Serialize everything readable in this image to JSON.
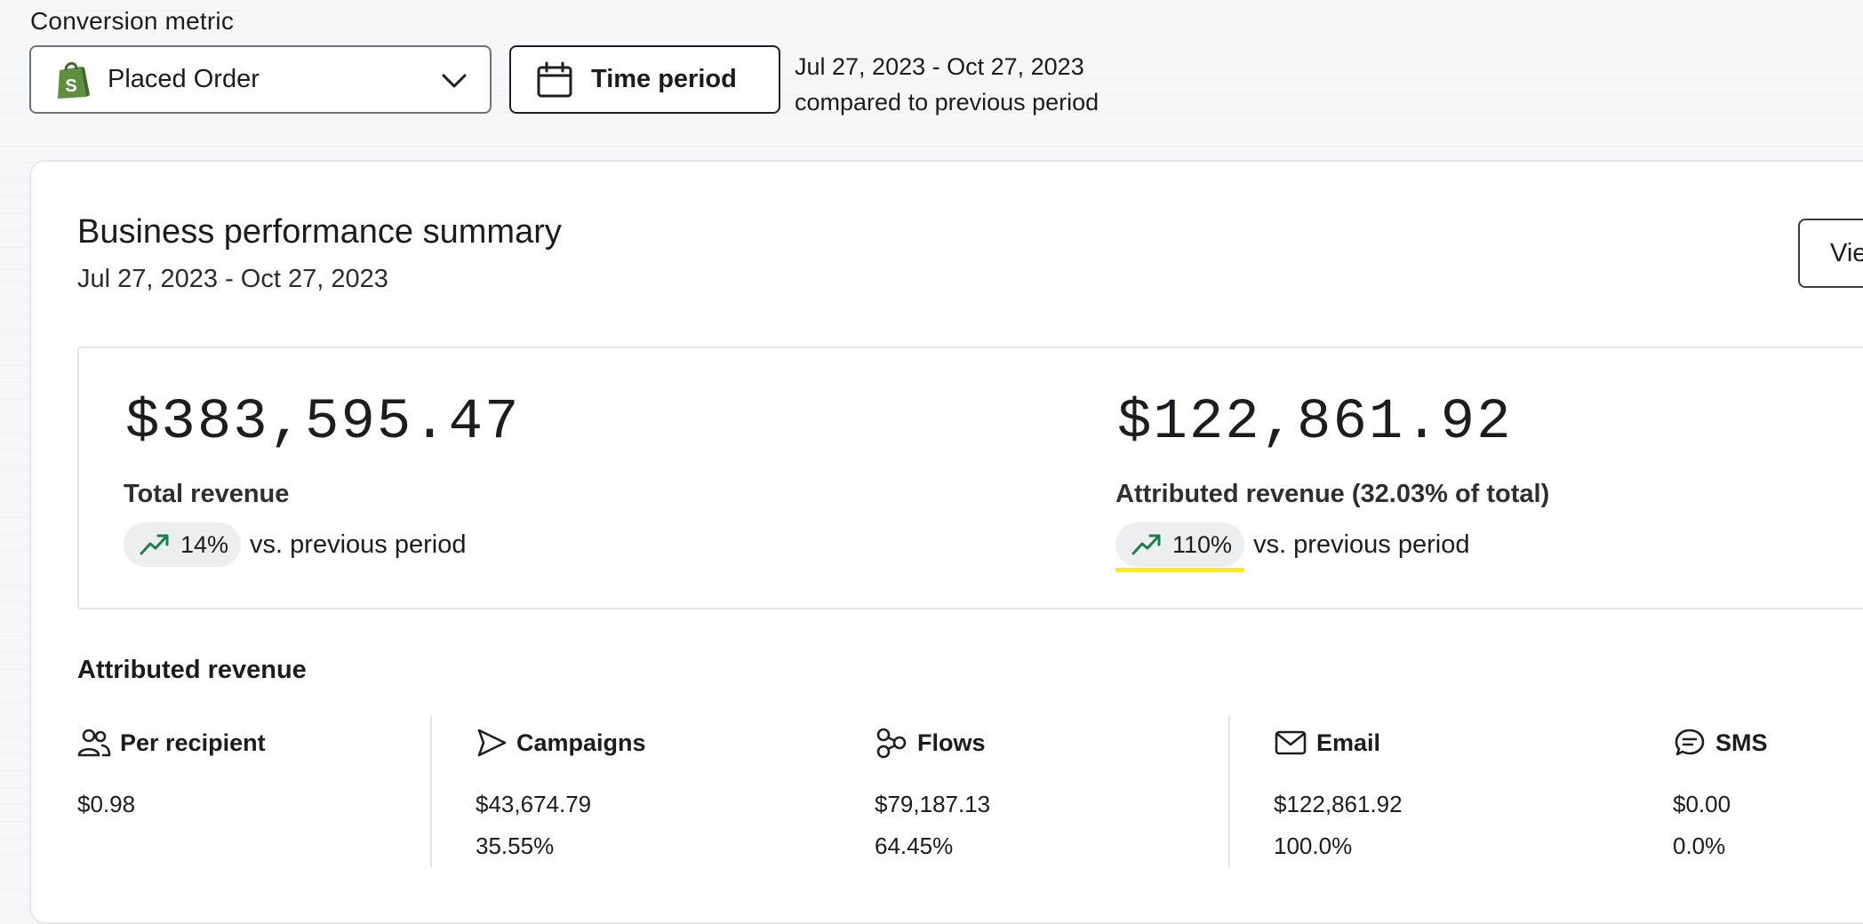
{
  "conversion": {
    "label": "Conversion metric",
    "selected": "Placed Order"
  },
  "time_period": {
    "button_label": "Time period",
    "range": "Jul 27, 2023 - Oct 27, 2023",
    "comparison": "compared to previous period"
  },
  "summary": {
    "title": "Business performance summary",
    "subtitle": "Jul 27, 2023 - Oct 27, 2023",
    "view_button": "Vie",
    "total": {
      "amount": "$383,595.47",
      "label": "Total revenue",
      "change": "14%",
      "change_text": "vs. previous period"
    },
    "attributed": {
      "amount": "$122,861.92",
      "label": "Attributed revenue (32.03% of total)",
      "change": "110%",
      "change_text": "vs. previous period"
    }
  },
  "attributed_revenue": {
    "title": "Attributed revenue",
    "columns": [
      {
        "icon": "people-icon",
        "label": "Per recipient",
        "value": "$0.98",
        "percent": ""
      },
      {
        "icon": "campaign-send-icon",
        "label": "Campaigns",
        "value": "$43,674.79",
        "percent": "35.55%"
      },
      {
        "icon": "flows-icon",
        "label": "Flows",
        "value": "$79,187.13",
        "percent": "64.45%"
      },
      {
        "icon": "email-icon",
        "label": "Email",
        "value": "$122,861.92",
        "percent": "100.0%"
      },
      {
        "icon": "sms-icon",
        "label": "SMS",
        "value": "$0.00",
        "percent": "0.0%"
      }
    ]
  },
  "colors": {
    "trend_up": "#1a7f4b",
    "highlight": "#ffee00",
    "shopify_green": "#5e8e3e"
  }
}
